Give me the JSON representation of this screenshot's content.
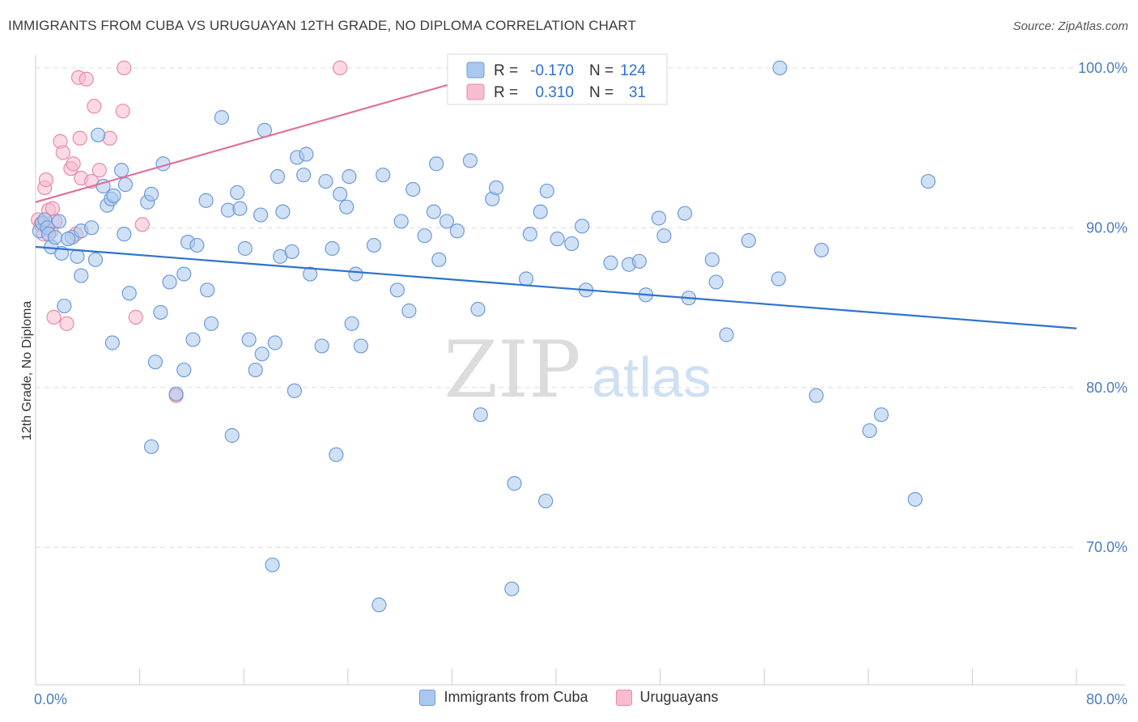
{
  "title": "IMMIGRANTS FROM CUBA VS URUGUAYAN 12TH GRADE, NO DIPLOMA CORRELATION CHART",
  "source": "Source: ZipAtlas.com",
  "watermark": {
    "zip": "ZIP",
    "atlas": "atlas"
  },
  "colors": {
    "blue_fill": "#aac8ef",
    "blue_stroke": "#6f9ad8",
    "blue_line": "#2f73cc",
    "pink_fill": "#f7bcd0",
    "pink_stroke": "#e98aa8",
    "pink_line": "#e0709a",
    "tick_label": "#4a7cc2",
    "grid": "#dcdcdc"
  },
  "stats_box": {
    "rows": [
      {
        "series": "cuba",
        "r_label": "R =",
        "r_value": "-0.170",
        "n_label": "N =",
        "n_value": "124"
      },
      {
        "series": "uruguayans",
        "r_label": "R =",
        "r_value": "0.310",
        "n_label": "N =",
        "n_value": "31"
      }
    ]
  },
  "chart_data": {
    "type": "scatter",
    "xlabel": "",
    "ylabel": "12th Grade, No Diploma",
    "xlim": [
      0,
      80
    ],
    "ylim": [
      61.4,
      100.4
    ],
    "x_tick_labels": [
      {
        "value": 0,
        "label": "0.0%"
      },
      {
        "value": 80,
        "label": "80.0%"
      }
    ],
    "y_ticks": [
      {
        "value": 100,
        "label": "100.0%"
      },
      {
        "value": 90,
        "label": "90.0%"
      },
      {
        "value": 80,
        "label": "80.0%"
      },
      {
        "value": 70,
        "label": "70.0%"
      }
    ],
    "grid": true,
    "legend_position": "bottom-center",
    "series": [
      {
        "name": "Immigrants from Cuba",
        "key": "cuba",
        "trend": [
          [
            0,
            88.8
          ],
          [
            80,
            83.7
          ]
        ],
        "points": [
          [
            0.3,
            89.8
          ],
          [
            0.5,
            90.3
          ],
          [
            0.7,
            90.5
          ],
          [
            0.9,
            90.0
          ],
          [
            1.0,
            89.6
          ],
          [
            1.2,
            88.8
          ],
          [
            1.5,
            89.4
          ],
          [
            1.8,
            90.4
          ],
          [
            2.0,
            88.4
          ],
          [
            2.2,
            85.1
          ],
          [
            2.8,
            89.4
          ],
          [
            3.2,
            88.2
          ],
          [
            3.5,
            89.8
          ],
          [
            3.5,
            87.0
          ],
          [
            4.3,
            90.0
          ],
          [
            4.6,
            88.0
          ],
          [
            4.8,
            95.8
          ],
          [
            5.2,
            92.6
          ],
          [
            5.5,
            91.4
          ],
          [
            5.8,
            91.8
          ],
          [
            5.9,
            82.8
          ],
          [
            6.6,
            93.6
          ],
          [
            6.8,
            89.6
          ],
          [
            6.9,
            92.7
          ],
          [
            7.2,
            85.9
          ],
          [
            8.6,
            91.6
          ],
          [
            8.9,
            76.3
          ],
          [
            8.9,
            92.1
          ],
          [
            9.2,
            81.6
          ],
          [
            9.6,
            84.7
          ],
          [
            9.8,
            94.0
          ],
          [
            10.3,
            86.6
          ],
          [
            10.8,
            79.6
          ],
          [
            11.4,
            87.1
          ],
          [
            11.4,
            81.1
          ],
          [
            11.7,
            89.1
          ],
          [
            12.1,
            83.0
          ],
          [
            13.1,
            91.7
          ],
          [
            13.2,
            86.1
          ],
          [
            13.5,
            84.0
          ],
          [
            14.3,
            96.9
          ],
          [
            14.8,
            91.1
          ],
          [
            15.1,
            77.0
          ],
          [
            15.5,
            92.2
          ],
          [
            15.7,
            91.2
          ],
          [
            16.1,
            88.7
          ],
          [
            16.4,
            83.0
          ],
          [
            16.9,
            81.1
          ],
          [
            17.3,
            90.8
          ],
          [
            17.4,
            82.1
          ],
          [
            17.6,
            96.1
          ],
          [
            18.2,
            68.9
          ],
          [
            18.4,
            82.8
          ],
          [
            18.6,
            93.2
          ],
          [
            18.8,
            88.2
          ],
          [
            19.0,
            91.0
          ],
          [
            19.7,
            88.5
          ],
          [
            19.9,
            79.8
          ],
          [
            20.1,
            94.4
          ],
          [
            20.6,
            93.3
          ],
          [
            20.8,
            94.6
          ],
          [
            21.1,
            87.1
          ],
          [
            22.0,
            82.6
          ],
          [
            22.3,
            92.9
          ],
          [
            22.8,
            88.7
          ],
          [
            23.1,
            75.8
          ],
          [
            23.4,
            92.1
          ],
          [
            23.9,
            91.3
          ],
          [
            24.1,
            93.2
          ],
          [
            24.3,
            84.0
          ],
          [
            24.6,
            87.1
          ],
          [
            25.0,
            82.6
          ],
          [
            26.4,
            66.4
          ],
          [
            26.7,
            93.3
          ],
          [
            27.8,
            86.1
          ],
          [
            28.1,
            90.4
          ],
          [
            28.7,
            84.8
          ],
          [
            29.0,
            92.4
          ],
          [
            29.9,
            89.5
          ],
          [
            30.6,
            91.0
          ],
          [
            30.8,
            94.0
          ],
          [
            31.0,
            88.0
          ],
          [
            31.6,
            90.4
          ],
          [
            32.4,
            89.8
          ],
          [
            33.4,
            94.2
          ],
          [
            34.0,
            84.9
          ],
          [
            35.1,
            91.8
          ],
          [
            35.4,
            92.5
          ],
          [
            34.2,
            78.3
          ],
          [
            36.6,
            67.4
          ],
          [
            36.8,
            74.0
          ],
          [
            37.7,
            86.8
          ],
          [
            38.0,
            89.6
          ],
          [
            38.8,
            91.0
          ],
          [
            39.2,
            72.9
          ],
          [
            39.3,
            92.3
          ],
          [
            40.1,
            89.3
          ],
          [
            41.2,
            89.0
          ],
          [
            42.0,
            90.1
          ],
          [
            42.3,
            86.1
          ],
          [
            44.2,
            87.8
          ],
          [
            45.6,
            87.7
          ],
          [
            46.4,
            87.9
          ],
          [
            46.9,
            85.8
          ],
          [
            47.9,
            90.6
          ],
          [
            48.3,
            89.5
          ],
          [
            49.9,
            90.9
          ],
          [
            50.2,
            85.6
          ],
          [
            52.0,
            88.0
          ],
          [
            52.3,
            86.6
          ],
          [
            53.1,
            83.3
          ],
          [
            54.8,
            89.2
          ],
          [
            57.1,
            86.8
          ],
          [
            57.2,
            100.0
          ],
          [
            60.0,
            79.5
          ],
          [
            64.1,
            77.3
          ],
          [
            65.0,
            78.3
          ],
          [
            67.6,
            73.0
          ],
          [
            68.6,
            92.9
          ],
          [
            60.4,
            88.6
          ],
          [
            2.5,
            89.3
          ],
          [
            6.0,
            92.0
          ],
          [
            12.4,
            88.9
          ],
          [
            26.0,
            88.9
          ]
        ]
      },
      {
        "name": "Uruguayans",
        "key": "uruguayans",
        "trend": [
          [
            0,
            91.6
          ],
          [
            38,
            100.4
          ]
        ],
        "points": [
          [
            0.2,
            90.5
          ],
          [
            0.4,
            90.2
          ],
          [
            0.7,
            92.5
          ],
          [
            0.8,
            93.0
          ],
          [
            1.0,
            91.1
          ],
          [
            1.2,
            89.8
          ],
          [
            1.3,
            91.2
          ],
          [
            1.4,
            84.4
          ],
          [
            1.5,
            90.4
          ],
          [
            1.9,
            95.4
          ],
          [
            2.1,
            94.7
          ],
          [
            2.4,
            84.0
          ],
          [
            2.7,
            93.7
          ],
          [
            2.9,
            94.0
          ],
          [
            3.1,
            89.6
          ],
          [
            3.3,
            99.4
          ],
          [
            3.4,
            95.6
          ],
          [
            3.5,
            93.1
          ],
          [
            3.9,
            99.3
          ],
          [
            4.3,
            92.9
          ],
          [
            4.5,
            97.6
          ],
          [
            4.9,
            93.6
          ],
          [
            5.7,
            95.6
          ],
          [
            6.7,
            97.3
          ],
          [
            6.8,
            100.0
          ],
          [
            7.7,
            84.4
          ],
          [
            8.2,
            90.2
          ],
          [
            10.8,
            79.5
          ],
          [
            23.4,
            100.0
          ],
          [
            36.1,
            100.0
          ],
          [
            0.6,
            89.6
          ]
        ]
      }
    ]
  }
}
